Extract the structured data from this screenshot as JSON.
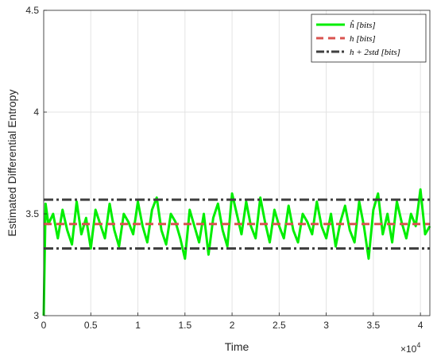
{
  "chart_data": {
    "type": "line",
    "xlabel": "Time",
    "ylabel": "Estimated Differential Entropy",
    "xlim": [
      0,
      41000
    ],
    "ylim": [
      3,
      4.5
    ],
    "x_multiplier_label": "×10",
    "x_multiplier_exp": "4",
    "x_ticks": [
      0,
      5000,
      10000,
      15000,
      20000,
      25000,
      30000,
      35000,
      40000
    ],
    "x_tick_labels": [
      "0",
      "0.5",
      "1",
      "1.5",
      "2",
      "2.5",
      "3",
      "3.5",
      "4"
    ],
    "y_ticks": [
      3,
      3.5,
      4,
      4.5
    ],
    "y_tick_labels": [
      "3",
      "3.5",
      "4",
      "4.5"
    ],
    "grid": true,
    "legend_position": "top-right",
    "legend_entries": [
      {
        "label": "ĥ [bits]",
        "color": "#00ee00",
        "style": "solid"
      },
      {
        "label": "h [bits]",
        "color": "#d9534f",
        "style": "dashed"
      },
      {
        "label": "h + 2std [bits]",
        "color": "#404040",
        "style": "dashdot"
      }
    ],
    "series": [
      {
        "name": "ĥ [bits]",
        "color": "#00ee00",
        "x": [
          0,
          200,
          500,
          1000,
          1500,
          2000,
          2500,
          3000,
          3500,
          4000,
          4500,
          5000,
          5500,
          6000,
          6500,
          7000,
          7500,
          8000,
          8500,
          9000,
          9500,
          10000,
          10500,
          11000,
          11500,
          12000,
          12500,
          13000,
          13500,
          14000,
          14500,
          15000,
          15500,
          16000,
          16500,
          17000,
          17500,
          18000,
          18500,
          19000,
          19500,
          20000,
          20500,
          21000,
          21500,
          22000,
          22500,
          23000,
          23500,
          24000,
          24500,
          25000,
          25500,
          26000,
          26500,
          27000,
          27500,
          28000,
          28500,
          29000,
          29500,
          30000,
          30500,
          31000,
          31500,
          32000,
          32500,
          33000,
          33500,
          34000,
          34500,
          35000,
          35500,
          36000,
          36500,
          37000,
          37500,
          38000,
          38500,
          39000,
          39500,
          40000,
          40500,
          41000
        ],
        "values": [
          3.0,
          3.55,
          3.45,
          3.5,
          3.38,
          3.52,
          3.42,
          3.35,
          3.56,
          3.4,
          3.48,
          3.33,
          3.52,
          3.45,
          3.38,
          3.55,
          3.42,
          3.34,
          3.5,
          3.46,
          3.4,
          3.56,
          3.44,
          3.36,
          3.52,
          3.58,
          3.42,
          3.35,
          3.5,
          3.46,
          3.38,
          3.28,
          3.52,
          3.44,
          3.36,
          3.5,
          3.3,
          3.48,
          3.55,
          3.42,
          3.34,
          3.6,
          3.5,
          3.4,
          3.56,
          3.44,
          3.38,
          3.58,
          3.46,
          3.36,
          3.52,
          3.44,
          3.38,
          3.54,
          3.42,
          3.36,
          3.5,
          3.46,
          3.4,
          3.56,
          3.44,
          3.38,
          3.5,
          3.34,
          3.46,
          3.54,
          3.42,
          3.36,
          3.56,
          3.44,
          3.28,
          3.52,
          3.6,
          3.4,
          3.5,
          3.36,
          3.56,
          3.46,
          3.38,
          3.5,
          3.44,
          3.62,
          3.4,
          3.44
        ]
      },
      {
        "name": "h [bits]",
        "color": "#d9534f",
        "x": [
          0,
          41000
        ],
        "values": [
          3.45,
          3.45
        ]
      },
      {
        "name": "h + 2std [bits]",
        "color": "#404040",
        "x": [
          0,
          41000
        ],
        "values": [
          3.57,
          3.57
        ]
      },
      {
        "name": "h - 2std [bits]",
        "color": "#404040",
        "x": [
          0,
          41000
        ],
        "values": [
          3.33,
          3.33
        ]
      }
    ]
  }
}
